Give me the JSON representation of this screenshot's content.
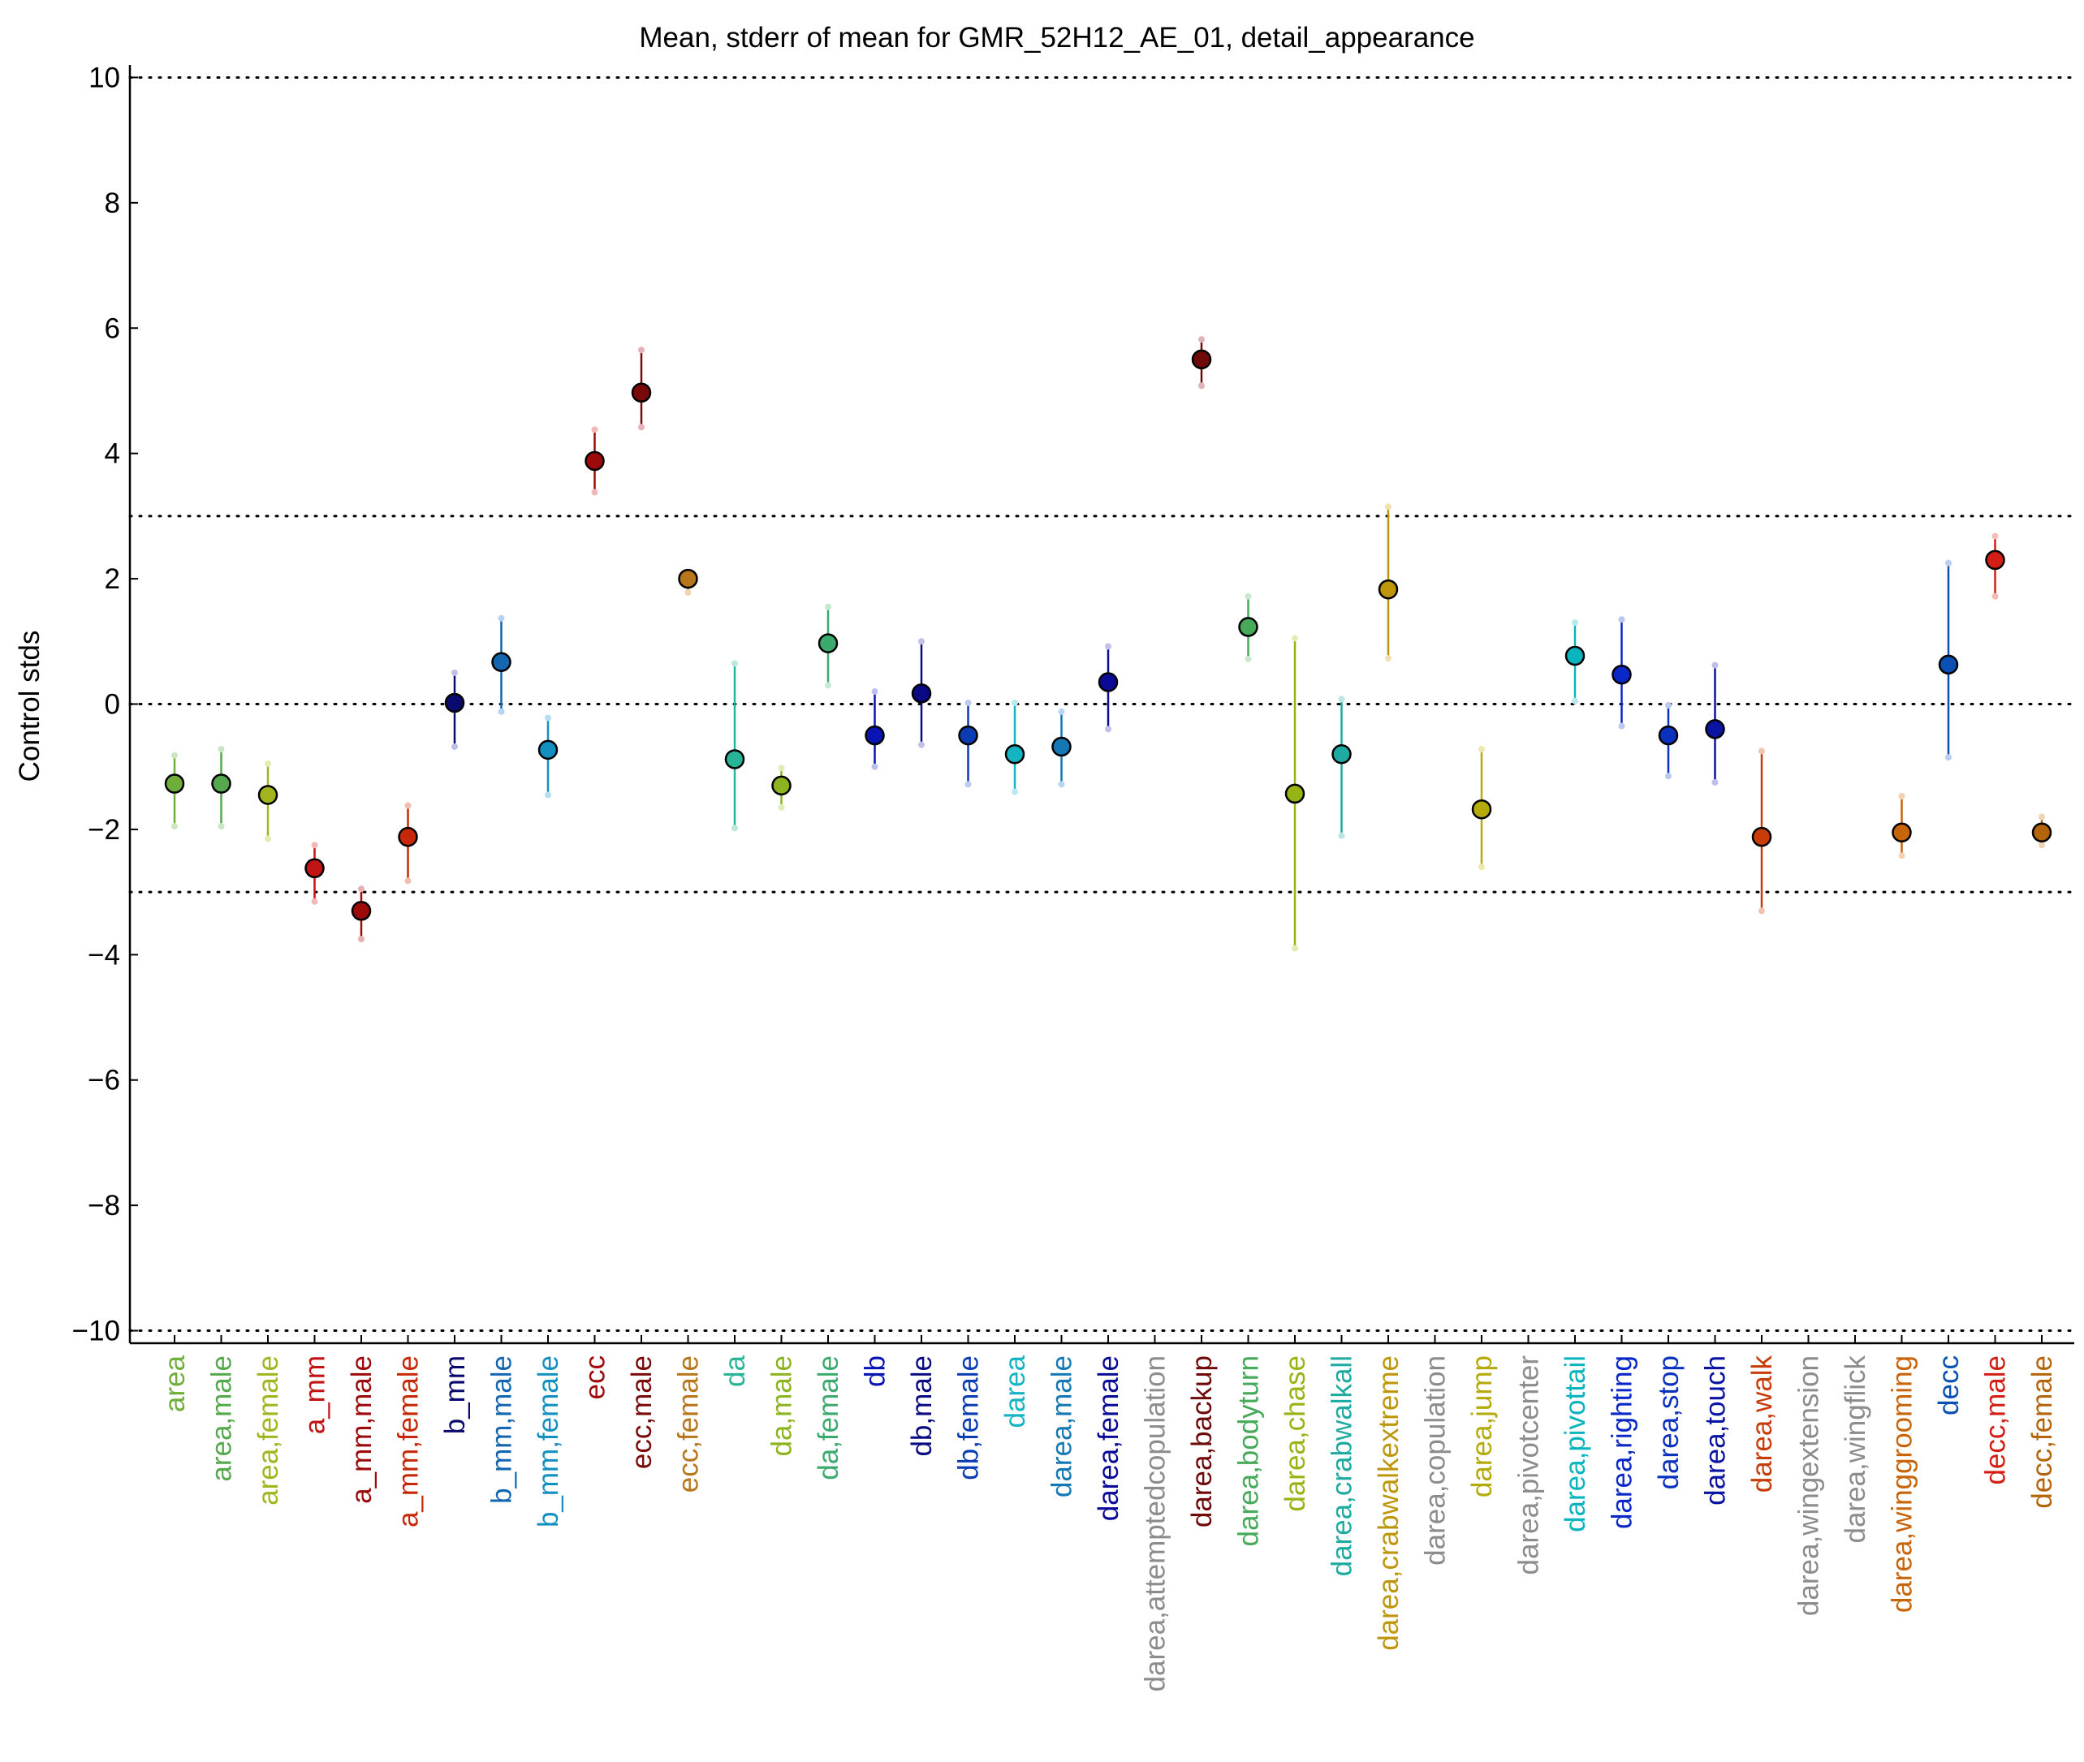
{
  "chart_data": {
    "type": "scatter",
    "title": "Mean, stderr of mean for GMR_52H12_AE_01, detail_appearance",
    "xlabel": "",
    "ylabel": "Control stds",
    "ylim": [
      -10.2,
      10.2
    ],
    "yticks": [
      10,
      8,
      6,
      4,
      2,
      0,
      -2,
      -4,
      -6,
      -8,
      -10
    ],
    "ytick_labels": [
      "10",
      "8",
      "6",
      "4",
      "2",
      "0",
      "−2",
      "−4",
      "−6",
      "−8",
      "−10"
    ],
    "reference_lines": [
      10,
      3,
      0,
      -3,
      -10
    ],
    "grid": false,
    "legend": "none",
    "categories": [
      {
        "label": "area",
        "mean": -1.27,
        "lo": -1.95,
        "hi": -0.82,
        "color": "#6fae3b",
        "light": "#cde6bd"
      },
      {
        "label": "area,male",
        "mean": -1.27,
        "lo": -1.95,
        "hi": -0.72,
        "color": "#55a84e",
        "light": "#c8e6c4"
      },
      {
        "label": "area,female",
        "mean": -1.45,
        "lo": -2.15,
        "hi": -0.95,
        "color": "#a3b51c",
        "light": "#e6ebb4"
      },
      {
        "label": "a_mm",
        "mean": -2.62,
        "lo": -3.15,
        "hi": -2.25,
        "color": "#c21414",
        "light": "#f0baba"
      },
      {
        "label": "a_mm,male",
        "mean": -3.3,
        "lo": -3.75,
        "hi": -2.95,
        "color": "#9c0a0a",
        "light": "#e6b0b0"
      },
      {
        "label": "a_mm,female",
        "mean": -2.12,
        "lo": -2.82,
        "hi": -1.62,
        "color": "#c8280a",
        "light": "#f2bdb0"
      },
      {
        "label": "b_mm",
        "mean": 0.02,
        "lo": -0.68,
        "hi": 0.5,
        "color": "#0a0a6e",
        "light": "#c0c0e6"
      },
      {
        "label": "b_mm,male",
        "mean": 0.67,
        "lo": -0.12,
        "hi": 1.37,
        "color": "#1366b0",
        "light": "#b8d2ee"
      },
      {
        "label": "b_mm,female",
        "mean": -0.73,
        "lo": -1.45,
        "hi": -0.22,
        "color": "#1490c0",
        "light": "#b6def0"
      },
      {
        "label": "ecc",
        "mean": 3.88,
        "lo": 3.38,
        "hi": 4.38,
        "color": "#9e0a0a",
        "light": "#f0b8b8"
      },
      {
        "label": "ecc,male",
        "mean": 4.97,
        "lo": 4.42,
        "hi": 5.65,
        "color": "#7a0a0a",
        "light": "#e8b0b8"
      },
      {
        "label": "ecc,female",
        "mean": 2.0,
        "lo": 1.78,
        "hi": 2.1,
        "color": "#b8761a",
        "light": "#ecd6b0"
      },
      {
        "label": "da",
        "mean": -0.88,
        "lo": -1.98,
        "hi": 0.65,
        "color": "#28b496",
        "light": "#bce8dc"
      },
      {
        "label": "da,male",
        "mean": -1.3,
        "lo": -1.65,
        "hi": -1.02,
        "color": "#8cb41e",
        "light": "#dfecb4"
      },
      {
        "label": "da,female",
        "mean": 0.97,
        "lo": 0.3,
        "hi": 1.55,
        "color": "#3caa6e",
        "light": "#c4e8d2"
      },
      {
        "label": "db",
        "mean": -0.5,
        "lo": -1.0,
        "hi": 0.2,
        "color": "#0a14b4",
        "light": "#bcc0ee"
      },
      {
        "label": "db,male",
        "mean": 0.17,
        "lo": -0.65,
        "hi": 1.0,
        "color": "#0a0a82",
        "light": "#c0c0e8"
      },
      {
        "label": "db,female",
        "mean": -0.5,
        "lo": -1.28,
        "hi": 0.02,
        "color": "#0a3cb4",
        "light": "#bccbee"
      },
      {
        "label": "darea",
        "mean": -0.8,
        "lo": -1.4,
        "hi": 0.02,
        "color": "#14b4c3",
        "light": "#b8e8ee"
      },
      {
        "label": "darea,male",
        "mean": -0.68,
        "lo": -1.28,
        "hi": -0.12,
        "color": "#1478b4",
        "light": "#b8d6ee"
      },
      {
        "label": "darea,female",
        "mean": 0.35,
        "lo": -0.4,
        "hi": 0.92,
        "color": "#0a0a96",
        "light": "#c0c0ea"
      },
      {
        "label": "darea,attemptedcopulation",
        "mean": null,
        "lo": null,
        "hi": null,
        "color": "#8c8c8c",
        "light": "#d8d8d8"
      },
      {
        "label": "darea,backup",
        "mean": 5.5,
        "lo": 5.08,
        "hi": 5.82,
        "color": "#6e0a0a",
        "light": "#e0b4b8"
      },
      {
        "label": "darea,bodyturn",
        "mean": 1.23,
        "lo": 0.72,
        "hi": 1.72,
        "color": "#46aa5a",
        "light": "#c6e8cc"
      },
      {
        "label": "darea,chase",
        "mean": -1.43,
        "lo": -3.9,
        "hi": 1.05,
        "color": "#96b414",
        "light": "#e2ecb2"
      },
      {
        "label": "darea,crabwalkall",
        "mean": -0.8,
        "lo": -2.1,
        "hi": 0.08,
        "color": "#1eaaa0",
        "light": "#bce6e2"
      },
      {
        "label": "darea,crabwalkextreme",
        "mean": 1.83,
        "lo": 0.73,
        "hi": 3.15,
        "color": "#be960a",
        "light": "#eee0b0"
      },
      {
        "label": "darea,copulation",
        "mean": null,
        "lo": null,
        "hi": null,
        "color": "#8c8c8c",
        "light": "#d8d8d8"
      },
      {
        "label": "darea,jump",
        "mean": -1.68,
        "lo": -2.6,
        "hi": -0.72,
        "color": "#b4aa0a",
        "light": "#ece8b0"
      },
      {
        "label": "darea,pivotcenter",
        "mean": null,
        "lo": null,
        "hi": null,
        "color": "#8c8c8c",
        "light": "#d8d8d8"
      },
      {
        "label": "darea,pivottail",
        "mean": 0.77,
        "lo": 0.05,
        "hi": 1.3,
        "color": "#0ab4be",
        "light": "#b6e8ee"
      },
      {
        "label": "darea,righting",
        "mean": 0.47,
        "lo": -0.35,
        "hi": 1.35,
        "color": "#0a28c8",
        "light": "#bcc6f0"
      },
      {
        "label": "darea,stop",
        "mean": -0.5,
        "lo": -1.15,
        "hi": -0.02,
        "color": "#0a32be",
        "light": "#bcc8ee"
      },
      {
        "label": "darea,touch",
        "mean": -0.4,
        "lo": -1.25,
        "hi": 0.62,
        "color": "#0a14a0",
        "light": "#bcbfea"
      },
      {
        "label": "darea,walk",
        "mean": -2.12,
        "lo": -3.3,
        "hi": -0.75,
        "color": "#c83c0a",
        "light": "#f2c4b0"
      },
      {
        "label": "darea,wingextension",
        "mean": null,
        "lo": null,
        "hi": null,
        "color": "#8c8c8c",
        "light": "#d8d8d8"
      },
      {
        "label": "darea,wingflick",
        "mean": null,
        "lo": null,
        "hi": null,
        "color": "#8c8c8c",
        "light": "#d8d8d8"
      },
      {
        "label": "darea,winggrooming",
        "mean": -2.05,
        "lo": -2.42,
        "hi": -1.47,
        "color": "#c8640a",
        "light": "#f2d2b0"
      },
      {
        "label": "decc",
        "mean": 0.63,
        "lo": -0.85,
        "hi": 2.25,
        "color": "#0a50b4",
        "light": "#bccdee"
      },
      {
        "label": "decc,male",
        "mean": 2.3,
        "lo": 1.72,
        "hi": 2.68,
        "color": "#d21e14",
        "light": "#f4bcb6"
      },
      {
        "label": "decc,female",
        "mean": -2.05,
        "lo": -2.25,
        "hi": -1.8,
        "color": "#b4640a",
        "light": "#ecd4b4"
      }
    ]
  }
}
